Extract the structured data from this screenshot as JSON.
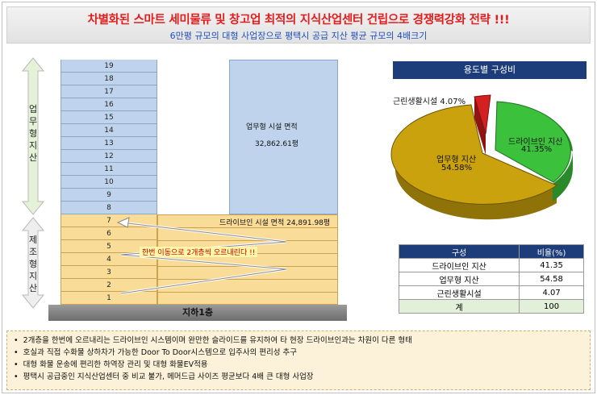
{
  "header": {
    "title": "차별화된 스마트 세미물류 및 창고업 최적의 지식산업센터 건립으로 경쟁력강화 전략 !!!",
    "subtitle": "6만평 규모의 대형 사업장으로 평택시 공급 지산 평균 규모의 4배크기"
  },
  "building": {
    "office_floors": [
      "19",
      "18",
      "17",
      "16",
      "15",
      "14",
      "13",
      "12",
      "11",
      "10",
      "9",
      "8"
    ],
    "mfg_floors": [
      "7",
      "6",
      "5",
      "4",
      "3",
      "2",
      "1"
    ],
    "office_label": "업무형지산",
    "mfg_label": "제조형지산",
    "office_area_label": "업무형 시설 면적",
    "office_area_value": "32,862.61평",
    "drivein_area_label": "드라이브인 시설 면적 24,891.98평",
    "ramp_label": "한번 이동으로 2개층씩 오르내린다 !!",
    "basement_label": "지하1층"
  },
  "pie": {
    "title": "용도별 구성비",
    "slices": [
      {
        "name": "드라이브인 지산",
        "pct_label": "41.35%",
        "value": 41.35,
        "color": "#3cc13c"
      },
      {
        "name": "업무형 지산",
        "pct_label": "54.58%",
        "value": 54.58,
        "color": "#c9a20e"
      },
      {
        "name": "근린생활시설",
        "pct_label": "4.07%",
        "value": 4.07,
        "color": "#d42020"
      }
    ],
    "label_drivein_name": "드라이브인 지산",
    "label_drivein_pct": "41.35%",
    "label_office_name": "업무형 지산",
    "label_office_pct": "54.58%",
    "label_retail": "근린생활시설 4.07%"
  },
  "table": {
    "headers": [
      "구성",
      "비율(%)"
    ],
    "rows": [
      [
        "드라이브인 지산",
        "41.35"
      ],
      [
        "업무형 지산",
        "54.58"
      ],
      [
        "근린생활시설",
        "4.07"
      ],
      [
        "계",
        "100"
      ]
    ]
  },
  "notes": [
    "2개층을 한번에 오르내리는 드라이브인 시스템이며 완만한 슬라이드를 유지하여 타 현장 드라이브인과는 차원이 다른 형태",
    "호실과 직접 수화물 상하차가 가능한 Door To Door시스템으로 입주사의 편리성 추구",
    "대형 화물 운송에 편리한 하역장 관리 및 대형 화물EV적용",
    "평택시 공급중인 지식산업센터 중 비교 불가, 메머드급 사이즈 평균보다 4배 큰 대형 사업장"
  ]
}
